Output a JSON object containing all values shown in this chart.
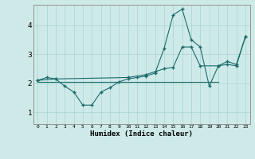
{
  "xlabel": "Humidex (Indice chaleur)",
  "bg_color": "#ceeae8",
  "line_color": "#1a6b6b",
  "grid_color": "#a8d4d0",
  "xlim": [
    -0.5,
    23.5
  ],
  "ylim": [
    0.6,
    4.7
  ],
  "xticks": [
    0,
    1,
    2,
    3,
    4,
    5,
    6,
    7,
    8,
    9,
    10,
    11,
    12,
    13,
    14,
    15,
    16,
    17,
    18,
    19,
    20,
    21,
    22,
    23
  ],
  "yticks": [
    1,
    2,
    3,
    4
  ],
  "series": [
    {
      "x": [
        0,
        1,
        2,
        3,
        4,
        5,
        6,
        7,
        8,
        9,
        10,
        11,
        12,
        13,
        14,
        15,
        16,
        17,
        18,
        19,
        20,
        21,
        22,
        23
      ],
      "y": [
        2.1,
        2.2,
        2.15,
        1.9,
        1.7,
        1.25,
        1.25,
        1.7,
        1.85,
        2.05,
        2.15,
        2.2,
        2.25,
        2.35,
        3.2,
        4.35,
        4.55,
        3.5,
        3.25,
        1.9,
        2.6,
        2.65,
        2.6,
        3.6
      ],
      "marker": true
    },
    {
      "x": [
        0,
        2,
        10,
        12,
        13,
        14,
        15,
        16,
        17,
        18,
        20,
        21,
        22,
        23
      ],
      "y": [
        2.1,
        2.15,
        2.2,
        2.3,
        2.4,
        2.5,
        2.55,
        3.25,
        3.25,
        2.6,
        2.6,
        2.75,
        2.65,
        3.6
      ],
      "marker": true
    },
    {
      "x": [
        0,
        20
      ],
      "y": [
        2.05,
        2.05
      ],
      "marker": false
    }
  ]
}
